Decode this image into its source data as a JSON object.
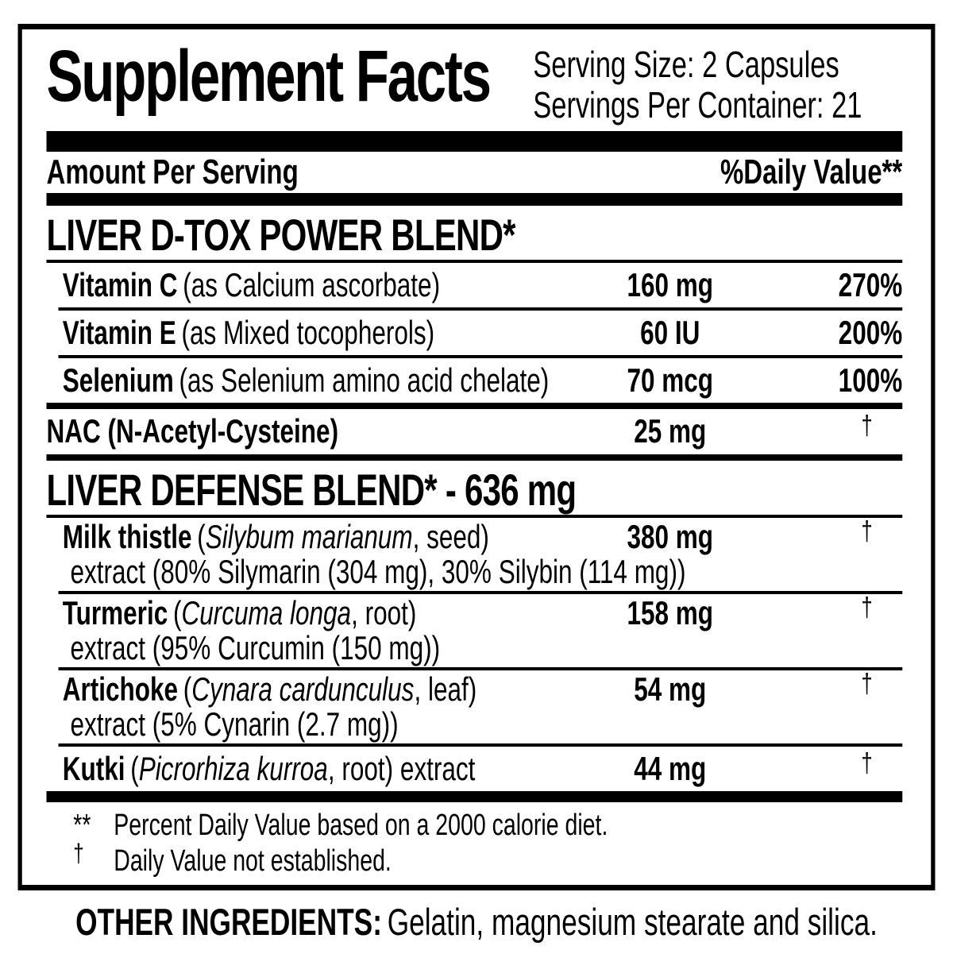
{
  "header": {
    "title": "Supplement Facts",
    "serving_size": "Serving Size: 2 Capsules",
    "servings_per_container": "Servings Per Container: 21"
  },
  "columns": {
    "amount_label": "Amount Per Serving",
    "dv_label": "%Daily Value**"
  },
  "sections": [
    {
      "title": "LIVER D-TOX POWER BLEND*",
      "rows": [
        {
          "name": "Vitamin C",
          "desc": "(as Calcium ascorbate)",
          "amount": "160 mg",
          "dv": "270%"
        },
        {
          "name": "Vitamin E",
          "desc": "(as Mixed tocopherols)",
          "amount": "60 IU",
          "dv": "200%"
        },
        {
          "name": "Selenium",
          "desc": "(as Selenium amino acid chelate)",
          "amount": "70 mcg",
          "dv": "100%"
        }
      ]
    },
    {
      "title": "LIVER DEFENSE BLEND* - 636 mg",
      "rows": [
        {
          "name": "Milk thistle",
          "paren_open": "(",
          "latin": "Silybum marianum",
          "paren_close": ", seed)",
          "line2": "extract (80% Silymarin (304 mg), 30% Silybin (114 mg))",
          "amount": "380 mg",
          "dv": "†"
        },
        {
          "name": "Turmeric",
          "paren_open": "(",
          "latin": "Curcuma longa",
          "paren_close": ", root)",
          "line2": "extract (95% Curcumin (150 mg))",
          "amount": "158 mg",
          "dv": "†"
        },
        {
          "name": "Artichoke",
          "paren_open": "(",
          "latin": "Cynara cardunculus",
          "paren_close": ", leaf)",
          "line2": "extract (5% Cynarin (2.7 mg))",
          "amount": "54 mg",
          "dv": "†"
        },
        {
          "name": "Kutki",
          "paren_open": "(",
          "latin": "Picrorhiza kurroa",
          "paren_close": ", root) extract",
          "amount": "44 mg",
          "dv": "†"
        }
      ]
    }
  ],
  "nac_row": {
    "name": "NAC (N-Acetyl-Cysteine)",
    "amount": "25 mg",
    "dv": "†"
  },
  "footnotes": [
    {
      "marker": "**",
      "text": "Percent Daily Value based on a 2000 calorie diet."
    },
    {
      "marker": "†",
      "text": "Daily Value not established."
    }
  ],
  "other_ingredients": {
    "label": "OTHER INGREDIENTS:",
    "text": "Gelatin, magnesium stearate and silica."
  },
  "colors": {
    "ink": "#000000",
    "background": "#ffffff"
  }
}
